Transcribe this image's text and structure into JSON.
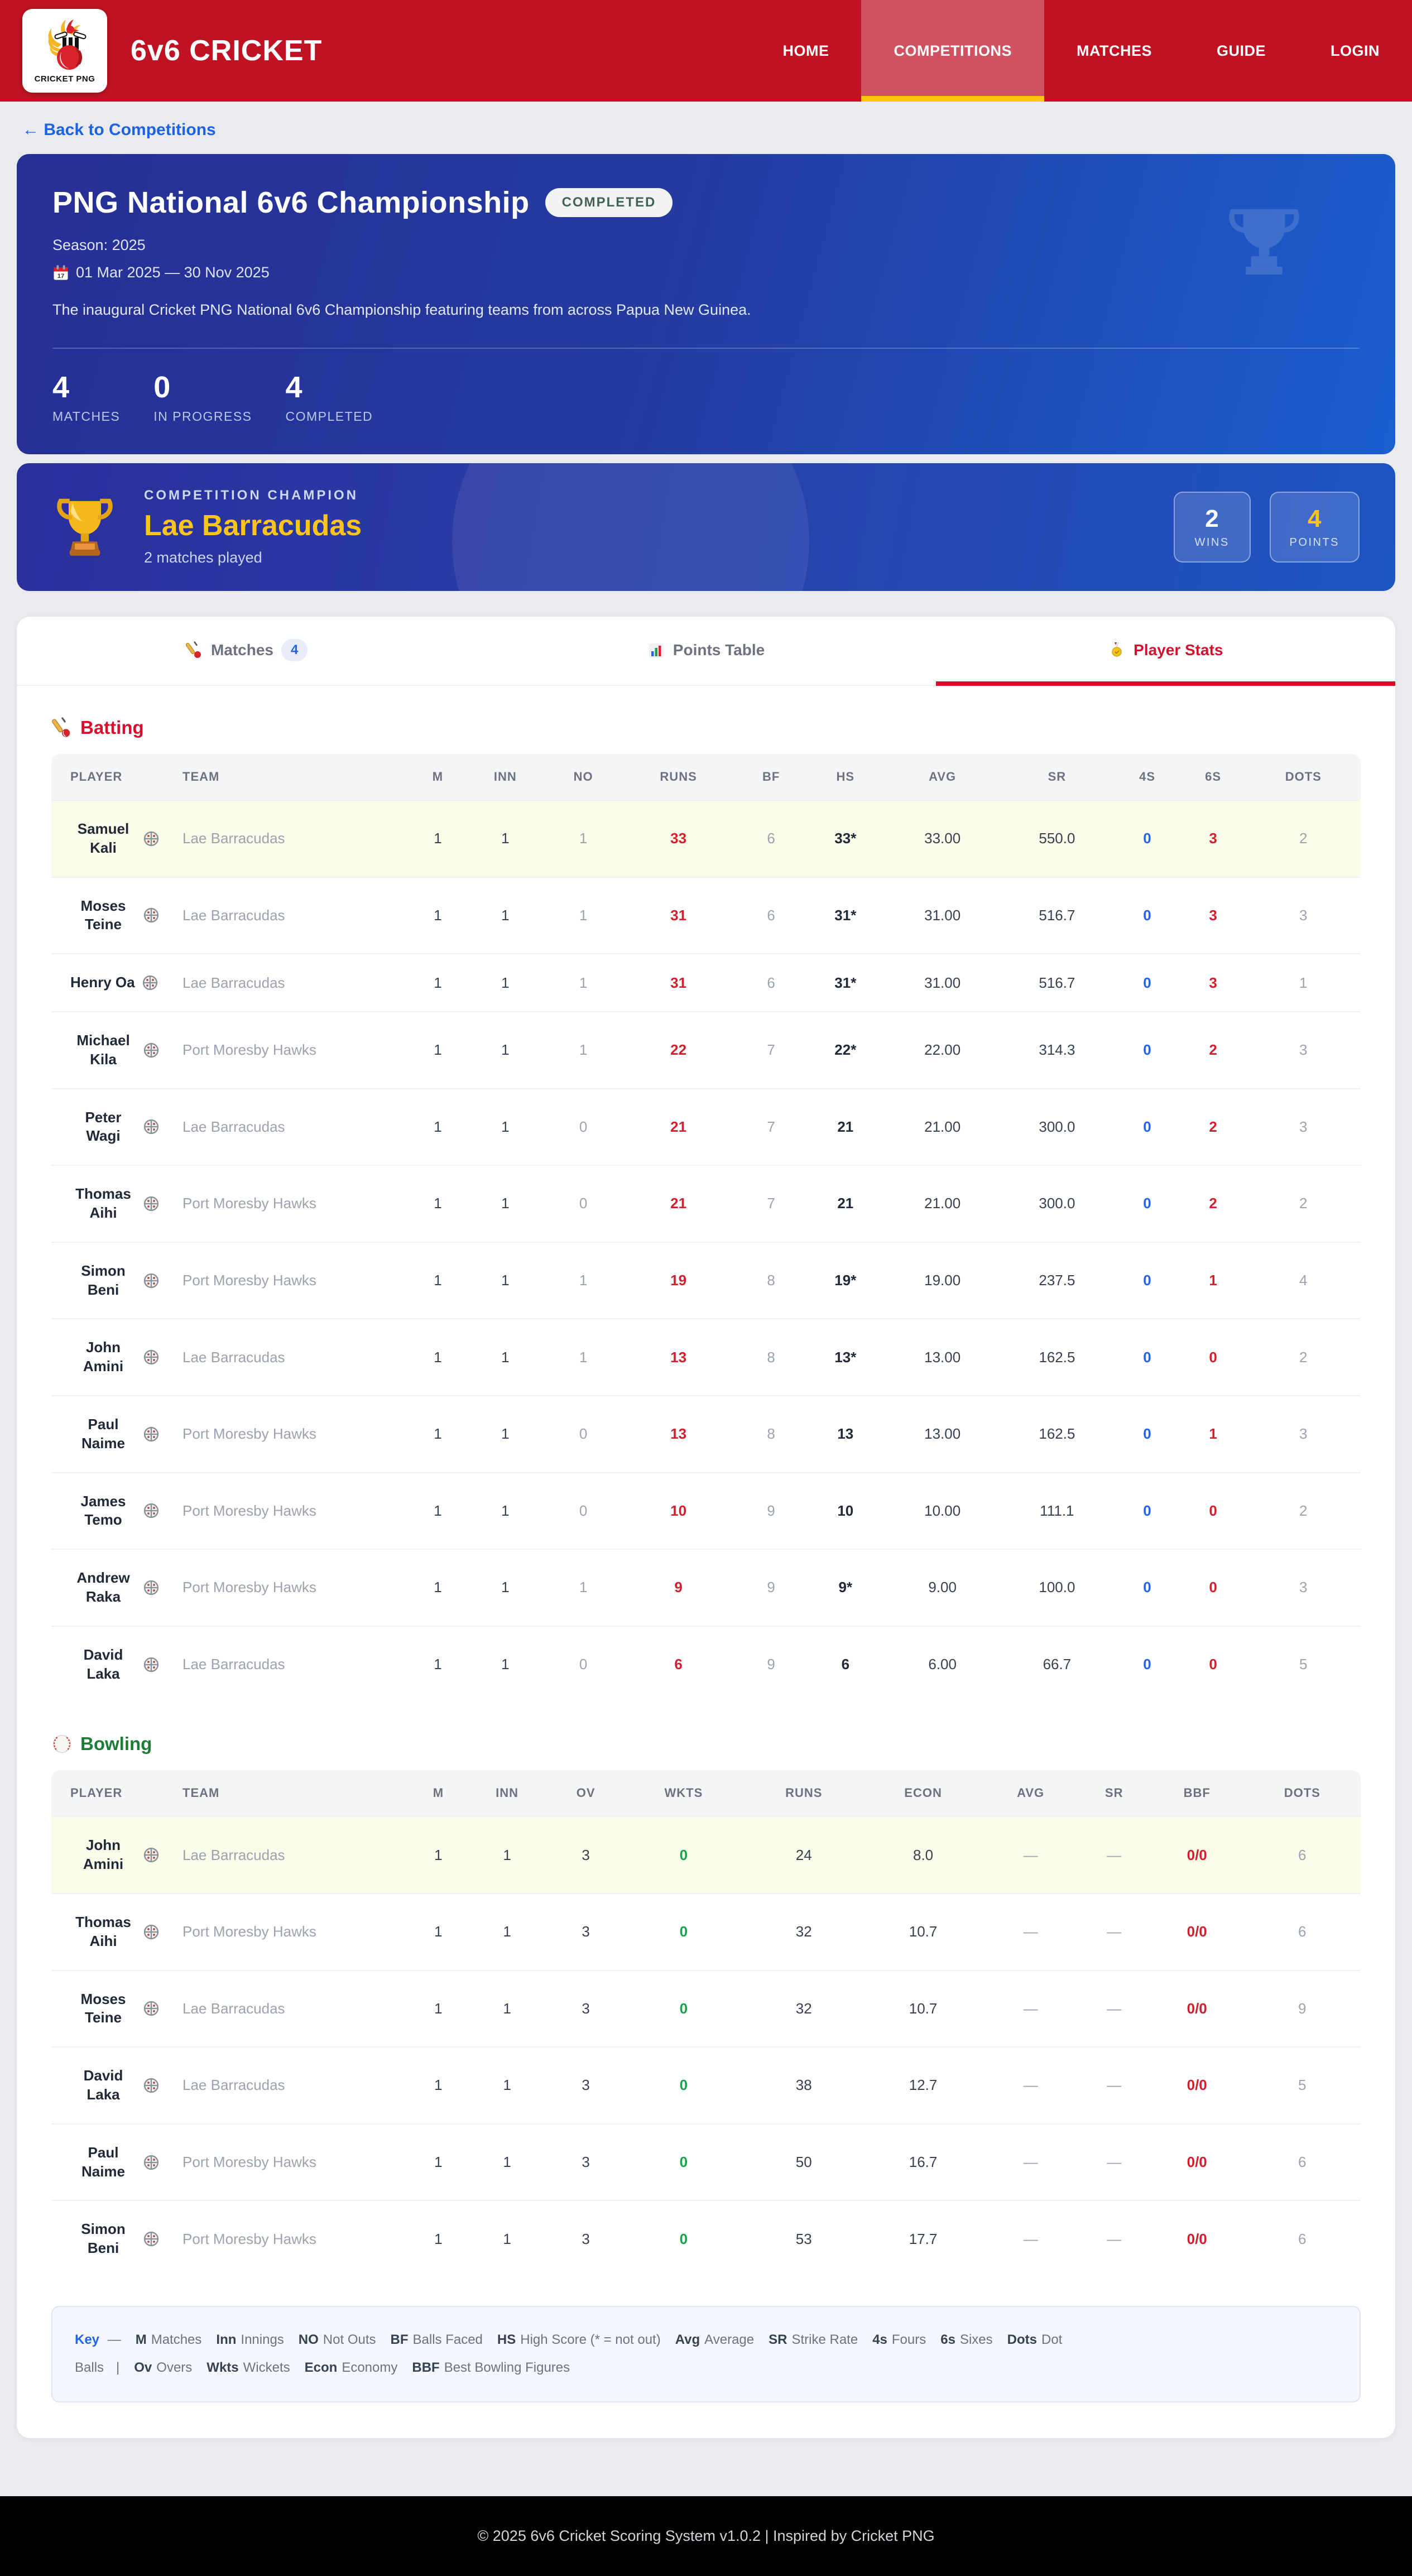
{
  "nav": {
    "brand": "6v6 CRICKET",
    "logo_caption": "CRICKET PNG",
    "items": [
      {
        "label": "HOME",
        "active": false
      },
      {
        "label": "COMPETITIONS",
        "active": true
      },
      {
        "label": "MATCHES",
        "active": false
      },
      {
        "label": "GUIDE",
        "active": false
      },
      {
        "label": "LOGIN",
        "active": false
      }
    ]
  },
  "back_link": "← Back to Competitions",
  "competition": {
    "title": "PNG National 6v6 Championship",
    "status": "COMPLETED",
    "season": "Season: 2025",
    "dates": "01 Mar 2025 — 30 Nov 2025",
    "description": "The inaugural Cricket PNG National 6v6 Championship featuring teams from across Papua New Guinea.",
    "stats": [
      {
        "value": "4",
        "label": "MATCHES"
      },
      {
        "value": "0",
        "label": "IN PROGRESS"
      },
      {
        "value": "4",
        "label": "COMPLETED"
      }
    ]
  },
  "champion": {
    "label": "COMPETITION CHAMPION",
    "team": "Lae Barracudas",
    "sub": "2 matches played",
    "boxes": [
      {
        "value": "2",
        "label": "WINS",
        "accent": "white"
      },
      {
        "value": "4",
        "label": "POINTS",
        "accent": "yellow"
      }
    ]
  },
  "tabs": [
    {
      "label": "Matches",
      "badge": "4",
      "icon": "cricket-bat-icon",
      "active": false
    },
    {
      "label": "Points Table",
      "badge": null,
      "icon": "bar-chart-icon",
      "active": false
    },
    {
      "label": "Player Stats",
      "badge": null,
      "icon": "medal-icon",
      "active": true
    }
  ],
  "batting": {
    "title": "Batting",
    "headers": [
      "PLAYER",
      "TEAM",
      "M",
      "INN",
      "NO",
      "RUNS",
      "BF",
      "HS",
      "AVG",
      "SR",
      "4S",
      "6S",
      "DOTS"
    ],
    "col_classes": [
      "c-dark",
      "c-dark",
      "c-mut",
      "c-red",
      "c-mut",
      "c-darkb",
      "c-dark",
      "c-dark",
      "c-blue",
      "c-red",
      "c-mut"
    ],
    "rows": [
      {
        "name": "Samuel Kali",
        "team": "Lae Barracudas",
        "highlight": true,
        "values": [
          "1",
          "1",
          "1",
          "33",
          "6",
          "33*",
          "33.00",
          "550.0",
          "0",
          "3",
          "2"
        ]
      },
      {
        "name": "Moses Teine",
        "team": "Lae Barracudas",
        "highlight": false,
        "values": [
          "1",
          "1",
          "1",
          "31",
          "6",
          "31*",
          "31.00",
          "516.7",
          "0",
          "3",
          "3"
        ]
      },
      {
        "name": "Henry Oa",
        "team": "Lae Barracudas",
        "highlight": false,
        "values": [
          "1",
          "1",
          "1",
          "31",
          "6",
          "31*",
          "31.00",
          "516.7",
          "0",
          "3",
          "1"
        ]
      },
      {
        "name": "Michael Kila",
        "team": "Port Moresby Hawks",
        "highlight": false,
        "values": [
          "1",
          "1",
          "1",
          "22",
          "7",
          "22*",
          "22.00",
          "314.3",
          "0",
          "2",
          "3"
        ]
      },
      {
        "name": "Peter Wagi",
        "team": "Lae Barracudas",
        "highlight": false,
        "values": [
          "1",
          "1",
          "0",
          "21",
          "7",
          "21",
          "21.00",
          "300.0",
          "0",
          "2",
          "3"
        ]
      },
      {
        "name": "Thomas Aihi",
        "team": "Port Moresby Hawks",
        "highlight": false,
        "values": [
          "1",
          "1",
          "0",
          "21",
          "7",
          "21",
          "21.00",
          "300.0",
          "0",
          "2",
          "2"
        ]
      },
      {
        "name": "Simon Beni",
        "team": "Port Moresby Hawks",
        "highlight": false,
        "values": [
          "1",
          "1",
          "1",
          "19",
          "8",
          "19*",
          "19.00",
          "237.5",
          "0",
          "1",
          "4"
        ]
      },
      {
        "name": "John Amini",
        "team": "Lae Barracudas",
        "highlight": false,
        "values": [
          "1",
          "1",
          "1",
          "13",
          "8",
          "13*",
          "13.00",
          "162.5",
          "0",
          "0",
          "2"
        ]
      },
      {
        "name": "Paul Naime",
        "team": "Port Moresby Hawks",
        "highlight": false,
        "values": [
          "1",
          "1",
          "0",
          "13",
          "8",
          "13",
          "13.00",
          "162.5",
          "0",
          "1",
          "3"
        ]
      },
      {
        "name": "James Temo",
        "team": "Port Moresby Hawks",
        "highlight": false,
        "values": [
          "1",
          "1",
          "0",
          "10",
          "9",
          "10",
          "10.00",
          "111.1",
          "0",
          "0",
          "2"
        ]
      },
      {
        "name": "Andrew Raka",
        "team": "Port Moresby Hawks",
        "highlight": false,
        "values": [
          "1",
          "1",
          "1",
          "9",
          "9",
          "9*",
          "9.00",
          "100.0",
          "0",
          "0",
          "3"
        ]
      },
      {
        "name": "David Laka",
        "team": "Lae Barracudas",
        "highlight": false,
        "values": [
          "1",
          "1",
          "0",
          "6",
          "9",
          "6",
          "6.00",
          "66.7",
          "0",
          "0",
          "5"
        ]
      }
    ]
  },
  "bowling": {
    "title": "Bowling",
    "headers": [
      "PLAYER",
      "TEAM",
      "M",
      "INN",
      "OV",
      "WKTS",
      "RUNS",
      "ECON",
      "AVG",
      "SR",
      "BBF",
      "DOTS"
    ],
    "col_classes": [
      "c-dark",
      "c-dark",
      "c-dark",
      "c-green",
      "c-dark",
      "c-dark",
      "c-mut",
      "c-mut",
      "c-red",
      "c-mut"
    ],
    "rows": [
      {
        "name": "John Amini",
        "team": "Lae Barracudas",
        "highlight": true,
        "values": [
          "1",
          "1",
          "3",
          "0",
          "24",
          "8.0",
          "—",
          "—",
          "0/0",
          "6"
        ]
      },
      {
        "name": "Thomas Aihi",
        "team": "Port Moresby Hawks",
        "highlight": false,
        "values": [
          "1",
          "1",
          "3",
          "0",
          "32",
          "10.7",
          "—",
          "—",
          "0/0",
          "6"
        ]
      },
      {
        "name": "Moses Teine",
        "team": "Lae Barracudas",
        "highlight": false,
        "values": [
          "1",
          "1",
          "3",
          "0",
          "32",
          "10.7",
          "—",
          "—",
          "0/0",
          "9"
        ]
      },
      {
        "name": "David Laka",
        "team": "Lae Barracudas",
        "highlight": false,
        "values": [
          "1",
          "1",
          "3",
          "0",
          "38",
          "12.7",
          "—",
          "—",
          "0/0",
          "5"
        ]
      },
      {
        "name": "Paul Naime",
        "team": "Port Moresby Hawks",
        "highlight": false,
        "values": [
          "1",
          "1",
          "3",
          "0",
          "50",
          "16.7",
          "—",
          "—",
          "0/0",
          "6"
        ]
      },
      {
        "name": "Simon Beni",
        "team": "Port Moresby Hawks",
        "highlight": false,
        "values": [
          "1",
          "1",
          "3",
          "0",
          "53",
          "17.7",
          "—",
          "—",
          "0/0",
          "6"
        ]
      }
    ]
  },
  "key": {
    "word": "Key",
    "dash": "—",
    "entries": [
      {
        "term": "M",
        "def": "Matches"
      },
      {
        "term": "Inn",
        "def": "Innings"
      },
      {
        "term": "NO",
        "def": "Not Outs"
      },
      {
        "term": "BF",
        "def": "Balls Faced"
      },
      {
        "term": "HS",
        "def": "High Score (* = not out)"
      },
      {
        "term": "Avg",
        "def": "Average"
      },
      {
        "term": "SR",
        "def": "Strike Rate"
      },
      {
        "term": "4s",
        "def": "Fours"
      },
      {
        "term": "6s",
        "def": "Sixes"
      },
      {
        "term": "Dots",
        "def": "Dot Balls"
      },
      {
        "sep": "|"
      },
      {
        "term": "Ov",
        "def": "Overs"
      },
      {
        "term": "Wkts",
        "def": "Wickets"
      },
      {
        "term": "Econ",
        "def": "Economy"
      },
      {
        "term": "BBF",
        "def": "Best Bowling Figures"
      }
    ]
  },
  "footer": {
    "text": "© 2025 6v6 Cricket Scoring System v1.0.2 | Inspired by Cricket PNG"
  }
}
